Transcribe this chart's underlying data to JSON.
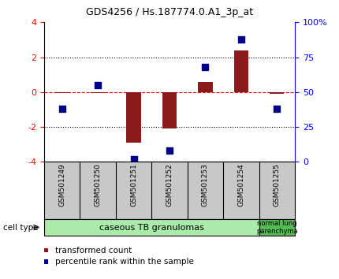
{
  "title": "GDS4256 / Hs.187774.0.A1_3p_at",
  "samples": [
    "GSM501249",
    "GSM501250",
    "GSM501251",
    "GSM501252",
    "GSM501253",
    "GSM501254",
    "GSM501255"
  ],
  "transformed_count": [
    -0.05,
    -0.05,
    -2.9,
    -2.1,
    0.6,
    2.4,
    -0.1
  ],
  "percentile_rank": [
    38,
    55,
    2,
    8,
    68,
    88,
    38
  ],
  "ylim_left": [
    -4,
    4
  ],
  "ylim_right": [
    0,
    100
  ],
  "yticks_left": [
    -4,
    -2,
    0,
    2,
    4
  ],
  "yticks_right": [
    0,
    25,
    50,
    75,
    100
  ],
  "ytick_labels_right": [
    "0",
    "25",
    "50",
    "75",
    "100%"
  ],
  "hlines_dotted": [
    -2,
    2
  ],
  "hline_red_dashed": 0,
  "bar_color": "#8B1A1A",
  "dot_color": "#00008B",
  "bg_color": "#FFFFFF",
  "fig_bg": "#FFFFFF",
  "label_bg": "#C8C8C8",
  "group1_color": "#AAEAAA",
  "group2_color": "#55BB55",
  "group1_label": "caseous TB granulomas",
  "group2_label": "normal lung\nparenchyma",
  "legend_bar_label": "transformed count",
  "legend_dot_label": "percentile rank within the sample",
  "cell_type_label": "cell type",
  "bar_width": 0.4,
  "dot_size": 40,
  "n_group1": 6,
  "n_group2": 1
}
